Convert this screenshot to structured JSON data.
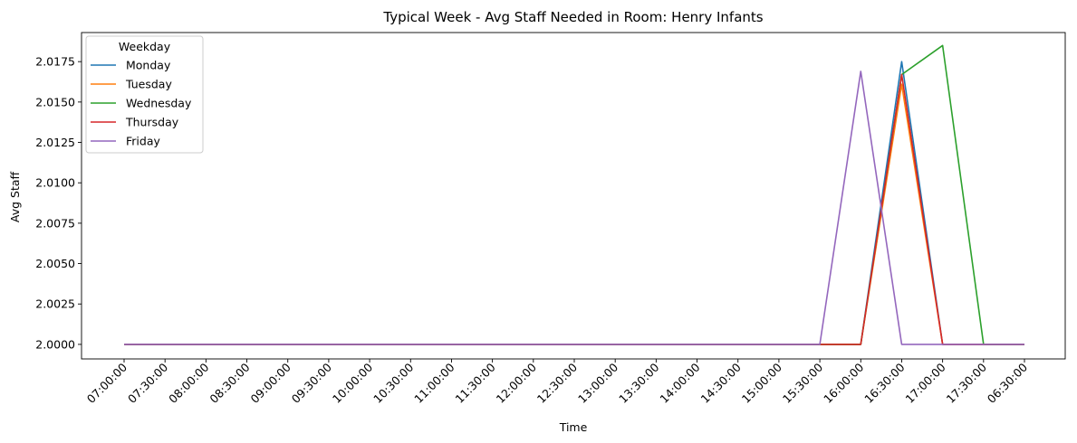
{
  "chart_data": {
    "type": "line",
    "title": "Typical Week - Avg Staff Needed in Room: Henry Infants",
    "xlabel": "Time",
    "ylabel": "Avg Staff",
    "categories": [
      "07:00:00",
      "07:30:00",
      "08:00:00",
      "08:30:00",
      "09:00:00",
      "09:30:00",
      "10:00:00",
      "10:30:00",
      "11:00:00",
      "11:30:00",
      "12:00:00",
      "12:30:00",
      "13:00:00",
      "13:30:00",
      "14:00:00",
      "14:30:00",
      "15:00:00",
      "15:30:00",
      "16:00:00",
      "16:30:00",
      "17:00:00",
      "17:30:00",
      "06:30:00"
    ],
    "yticks": [
      "2.0000",
      "2.0025",
      "2.0050",
      "2.0075",
      "2.0100",
      "2.0125",
      "2.0150",
      "2.0175"
    ],
    "ylim": [
      1.9991,
      2.0193
    ],
    "legend_title": "Weekday",
    "legend_position": "top-left",
    "grid": false,
    "series": [
      {
        "name": "Monday",
        "color": "#1f77b4",
        "values": [
          2,
          2,
          2,
          2,
          2,
          2,
          2,
          2,
          2,
          2,
          2,
          2,
          2,
          2,
          2,
          2,
          2,
          2,
          2,
          2.0175,
          2,
          2,
          2
        ]
      },
      {
        "name": "Tuesday",
        "color": "#ff7f0e",
        "values": [
          2,
          2,
          2,
          2,
          2,
          2,
          2,
          2,
          2,
          2,
          2,
          2,
          2,
          2,
          2,
          2,
          2,
          2,
          2,
          2.0161,
          2,
          2,
          2
        ]
      },
      {
        "name": "Wednesday",
        "color": "#2ca02c",
        "values": [
          2,
          2,
          2,
          2,
          2,
          2,
          2,
          2,
          2,
          2,
          2,
          2,
          2,
          2,
          2,
          2,
          2,
          2,
          2,
          2.0167,
          2.0185,
          2,
          2
        ]
      },
      {
        "name": "Thursday",
        "color": "#d62728",
        "values": [
          2,
          2,
          2,
          2,
          2,
          2,
          2,
          2,
          2,
          2,
          2,
          2,
          2,
          2,
          2,
          2,
          2,
          2,
          2,
          2.0167,
          2,
          2,
          2
        ]
      },
      {
        "name": "Friday",
        "color": "#9467bd",
        "values": [
          2,
          2,
          2,
          2,
          2,
          2,
          2,
          2,
          2,
          2,
          2,
          2,
          2,
          2,
          2,
          2,
          2,
          2,
          2.0169,
          2,
          2,
          2,
          2
        ]
      }
    ]
  }
}
